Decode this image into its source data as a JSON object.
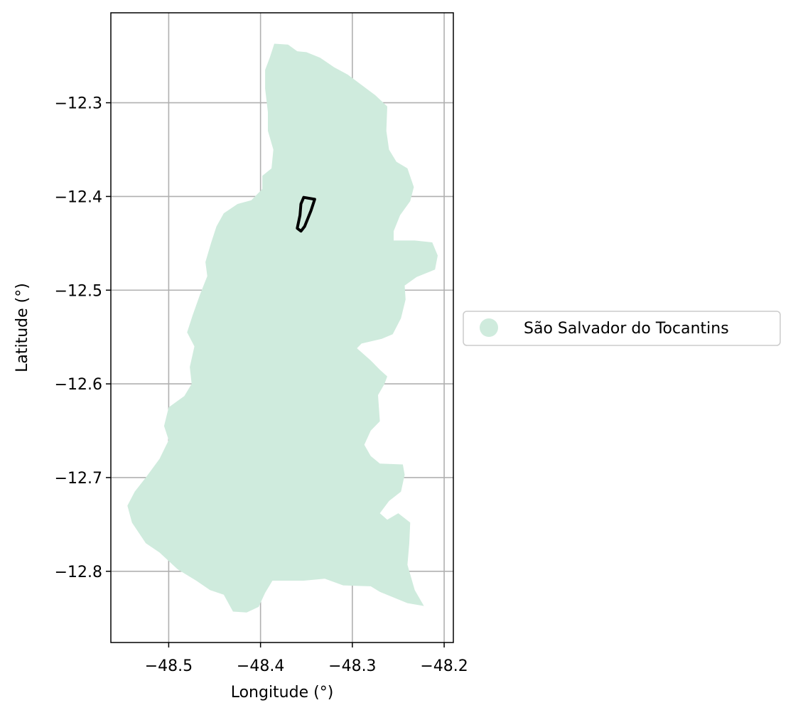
{
  "chart_data": {
    "type": "map",
    "xlabel": "Longitude (°)",
    "ylabel": "Latitude (°)",
    "xlim": [
      -48.563,
      -48.19
    ],
    "ylim": [
      -12.876,
      -12.204
    ],
    "grid": true,
    "x_ticks": [
      {
        "value": -48.5,
        "label": "−48.5"
      },
      {
        "value": -48.4,
        "label": "−48.4"
      },
      {
        "value": -48.3,
        "label": "−48.3"
      },
      {
        "value": -48.2,
        "label": "−48.2"
      }
    ],
    "y_ticks": [
      {
        "value": -12.3,
        "label": "−12.3"
      },
      {
        "value": -12.4,
        "label": "−12.4"
      },
      {
        "value": -12.5,
        "label": "−12.5"
      },
      {
        "value": -12.6,
        "label": "−12.6"
      },
      {
        "value": -12.7,
        "label": "−12.7"
      },
      {
        "value": -12.8,
        "label": "−12.8"
      }
    ],
    "legend": {
      "placement": "center-right outside",
      "entries": [
        {
          "label": "São Salvador do Tocantins",
          "color": "#cfebdd"
        }
      ]
    },
    "region": {
      "name": "São Salvador do Tocantins",
      "fill": "#cfebdd",
      "boundary": [
        [
          -48.385,
          -12.237
        ],
        [
          -48.37,
          -12.238
        ],
        [
          -48.36,
          -12.245
        ],
        [
          -48.35,
          -12.246
        ],
        [
          -48.335,
          -12.252
        ],
        [
          -48.32,
          -12.262
        ],
        [
          -48.305,
          -12.27
        ],
        [
          -48.29,
          -12.281
        ],
        [
          -48.275,
          -12.292
        ],
        [
          -48.262,
          -12.304
        ],
        [
          -48.263,
          -12.33
        ],
        [
          -48.26,
          -12.35
        ],
        [
          -48.252,
          -12.363
        ],
        [
          -48.24,
          -12.37
        ],
        [
          -48.233,
          -12.39
        ],
        [
          -48.237,
          -12.405
        ],
        [
          -48.248,
          -12.42
        ],
        [
          -48.255,
          -12.437
        ],
        [
          -48.255,
          -12.447
        ],
        [
          -48.232,
          -12.447
        ],
        [
          -48.213,
          -12.449
        ],
        [
          -48.207,
          -12.463
        ],
        [
          -48.21,
          -12.478
        ],
        [
          -48.23,
          -12.486
        ],
        [
          -48.243,
          -12.495
        ],
        [
          -48.242,
          -12.51
        ],
        [
          -48.247,
          -12.53
        ],
        [
          -48.256,
          -12.547
        ],
        [
          -48.268,
          -12.552
        ],
        [
          -48.29,
          -12.557
        ],
        [
          -48.295,
          -12.562
        ],
        [
          -48.28,
          -12.575
        ],
        [
          -48.27,
          -12.585
        ],
        [
          -48.262,
          -12.592
        ],
        [
          -48.265,
          -12.6
        ],
        [
          -48.272,
          -12.612
        ],
        [
          -48.27,
          -12.64
        ],
        [
          -48.28,
          -12.65
        ],
        [
          -48.287,
          -12.665
        ],
        [
          -48.28,
          -12.677
        ],
        [
          -48.27,
          -12.685
        ],
        [
          -48.245,
          -12.686
        ],
        [
          -48.243,
          -12.697
        ],
        [
          -48.247,
          -12.715
        ],
        [
          -48.26,
          -12.725
        ],
        [
          -48.27,
          -12.738
        ],
        [
          -48.262,
          -12.745
        ],
        [
          -48.25,
          -12.738
        ],
        [
          -48.237,
          -12.748
        ],
        [
          -48.238,
          -12.77
        ],
        [
          -48.24,
          -12.793
        ],
        [
          -48.232,
          -12.82
        ],
        [
          -48.222,
          -12.837
        ],
        [
          -48.24,
          -12.834
        ],
        [
          -48.27,
          -12.822
        ],
        [
          -48.28,
          -12.816
        ],
        [
          -48.31,
          -12.815
        ],
        [
          -48.33,
          -12.808
        ],
        [
          -48.353,
          -12.81
        ],
        [
          -48.376,
          -12.81
        ],
        [
          -48.387,
          -12.81
        ],
        [
          -48.395,
          -12.823
        ],
        [
          -48.402,
          -12.838
        ],
        [
          -48.415,
          -12.844
        ],
        [
          -48.43,
          -12.843
        ],
        [
          -48.44,
          -12.825
        ],
        [
          -48.455,
          -12.82
        ],
        [
          -48.47,
          -12.81
        ],
        [
          -48.49,
          -12.798
        ],
        [
          -48.51,
          -12.78
        ],
        [
          -48.525,
          -12.77
        ],
        [
          -48.54,
          -12.748
        ],
        [
          -48.545,
          -12.73
        ],
        [
          -48.537,
          -12.715
        ],
        [
          -48.525,
          -12.7
        ],
        [
          -48.51,
          -12.68
        ],
        [
          -48.5,
          -12.66
        ],
        [
          -48.505,
          -12.645
        ],
        [
          -48.5,
          -12.625
        ],
        [
          -48.483,
          -12.613
        ],
        [
          -48.475,
          -12.6
        ],
        [
          -48.477,
          -12.582
        ],
        [
          -48.472,
          -12.56
        ],
        [
          -48.48,
          -12.545
        ],
        [
          -48.474,
          -12.527
        ],
        [
          -48.466,
          -12.505
        ],
        [
          -48.458,
          -12.485
        ],
        [
          -48.46,
          -12.47
        ],
        [
          -48.454,
          -12.45
        ],
        [
          -48.448,
          -12.432
        ],
        [
          -48.44,
          -12.418
        ],
        [
          -48.425,
          -12.408
        ],
        [
          -48.41,
          -12.404
        ],
        [
          -48.398,
          -12.392
        ],
        [
          -48.398,
          -12.378
        ],
        [
          -48.388,
          -12.37
        ],
        [
          -48.386,
          -12.35
        ],
        [
          -48.392,
          -12.33
        ],
        [
          -48.392,
          -12.31
        ],
        [
          -48.395,
          -12.285
        ],
        [
          -48.395,
          -12.265
        ],
        [
          -48.39,
          -12.252
        ]
      ]
    },
    "outline": {
      "stroke": "#000000",
      "boundary": [
        [
          -48.353,
          -12.401
        ],
        [
          -48.341,
          -12.403
        ],
        [
          -48.345,
          -12.415
        ],
        [
          -48.352,
          -12.432
        ],
        [
          -48.356,
          -12.437
        ],
        [
          -48.36,
          -12.434
        ],
        [
          -48.357,
          -12.42
        ],
        [
          -48.356,
          -12.408
        ]
      ]
    }
  }
}
